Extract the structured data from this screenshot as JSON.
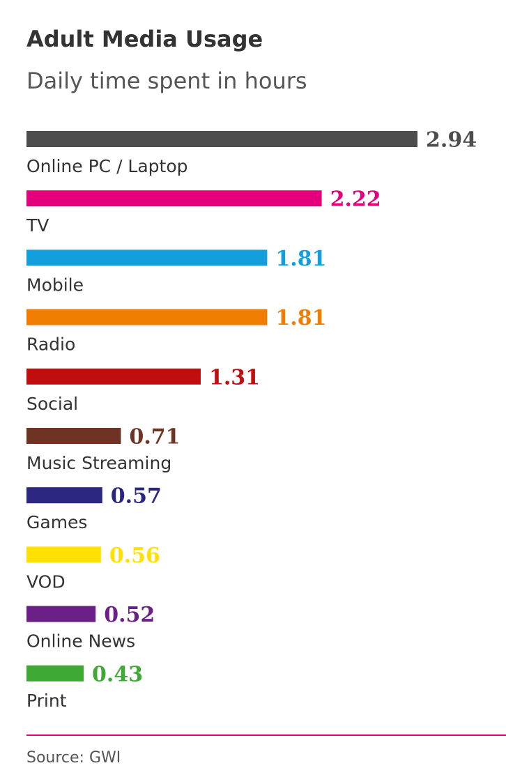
{
  "chart_data": {
    "type": "bar",
    "orientation": "horizontal",
    "title": "Adult Media Usage",
    "subtitle": "Daily time spent in hours",
    "xlabel": "",
    "ylabel": "",
    "xlim": [
      0,
      2.94
    ],
    "grid": false,
    "categories": [
      "Online PC / Laptop",
      "TV",
      "Mobile",
      "Radio",
      "Social",
      "Music Streaming",
      "Games",
      "VOD",
      "Online News",
      "Print"
    ],
    "values": [
      2.94,
      2.22,
      1.81,
      1.81,
      1.31,
      0.71,
      0.57,
      0.56,
      0.52,
      0.43
    ],
    "value_labels": [
      "2.94",
      "2.22",
      "1.81",
      "1.81",
      "1.31",
      "0.71",
      "0.57",
      "0.56",
      "0.52",
      "0.43"
    ],
    "colors": [
      "#4d4d4d",
      "#e4007c",
      "#139fdc",
      "#f07d00",
      "#c00d0d",
      "#6e3322",
      "#2b2680",
      "#ffe000",
      "#6b2087",
      "#3ea935"
    ]
  },
  "footer": {
    "source": "Source: GWI"
  },
  "rule_color": "#e4007c"
}
